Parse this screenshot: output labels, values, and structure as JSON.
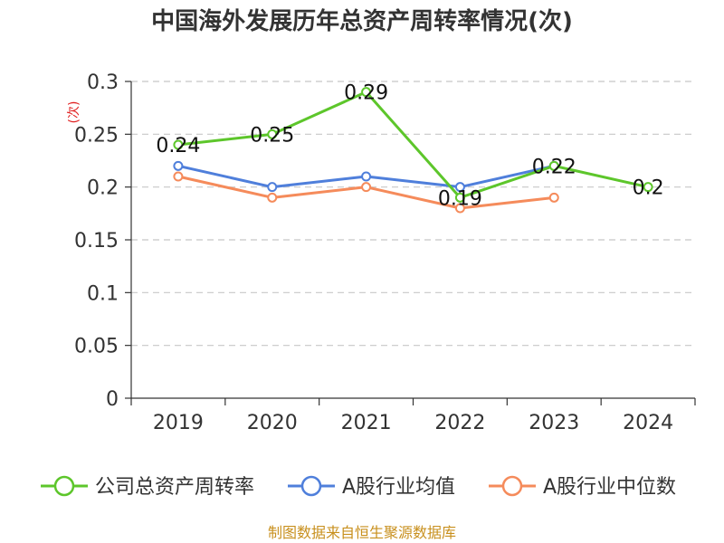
{
  "chart_data": {
    "type": "line",
    "title": "中国海外发展历年总资产周转率情况(次)",
    "ylabel": "(次)",
    "xlabel": "",
    "categories": [
      "2019",
      "2020",
      "2021",
      "2022",
      "2023",
      "2024"
    ],
    "y_ticks": [
      "0",
      "0.05",
      "0.1",
      "0.15",
      "0.2",
      "0.25",
      "0.3"
    ],
    "ylim": [
      0,
      0.3
    ],
    "grid": "horizontal-dashed",
    "legend_position": "bottom",
    "series": [
      {
        "name": "公司总资产周转率",
        "color": "#5dc62b",
        "values": [
          0.24,
          0.25,
          0.29,
          0.19,
          0.22,
          0.2
        ],
        "labels": [
          "0.24",
          "0.25",
          "0.29",
          "0.19",
          "0.22",
          "0.2"
        ]
      },
      {
        "name": "A股行业均值",
        "color": "#4f7fdb",
        "values": [
          0.22,
          0.2,
          0.21,
          0.2,
          0.22,
          null
        ]
      },
      {
        "name": "A股行业中位数",
        "color": "#f58b5b",
        "values": [
          0.21,
          0.19,
          0.2,
          0.18,
          0.19,
          null
        ]
      }
    ]
  },
  "footer": {
    "source": "制图数据来自恒生聚源数据库"
  }
}
